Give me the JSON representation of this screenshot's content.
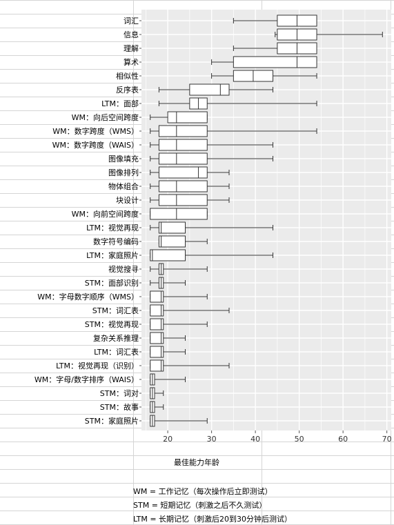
{
  "chart_data": {
    "type": "boxplot",
    "orientation": "horizontal",
    "title": "",
    "xlabel": "最佳能力年龄",
    "ylabel": "",
    "xlim": [
      14,
      71
    ],
    "xticks": [
      20,
      30,
      40,
      50,
      60,
      70
    ],
    "grid": true,
    "categories": [
      "词汇",
      "信息",
      "理解",
      "算术",
      "相似性",
      "反序表",
      "LTM：面部",
      "WM：向后空间跨度",
      "WM：数字跨度（WMS）",
      "WM：数字跨度（WAIS）",
      "图像填充",
      "图像排列",
      "物体组合",
      "块设计",
      "WM：向前空间跨度",
      "LTM：视觉再现",
      "数字符号编码",
      "LTM：家庭照片",
      "视觉搜寻",
      "STM：面部识别",
      "WM：字母数字顺序（WMS）",
      "STM：词汇表",
      "STM：视觉再现",
      "复杂关系推理",
      "LTM：词汇表",
      "LTM：视觉再现（识别）",
      "WM：字母/数字排序（WAIS）",
      "STM：词对",
      "STM：故事",
      "STM：家庭照片"
    ],
    "boxes": [
      {
        "min": 35,
        "q1": 45,
        "median": 49.5,
        "q3": 54,
        "max": 54
      },
      {
        "min": 44.5,
        "q1": 45,
        "median": 49.5,
        "q3": 54,
        "max": 69
      },
      {
        "min": 35,
        "q1": 45,
        "median": 49.5,
        "q3": 54,
        "max": 54
      },
      {
        "min": 30,
        "q1": 35,
        "median": 49.5,
        "q3": 54,
        "max": 54
      },
      {
        "min": 30,
        "q1": 35,
        "median": 39.5,
        "q3": 44,
        "max": 54
      },
      {
        "min": 18,
        "q1": 25,
        "median": 32,
        "q3": 34,
        "max": 44
      },
      {
        "min": 18,
        "q1": 25,
        "median": 27,
        "q3": 29,
        "max": 54
      },
      {
        "min": 16,
        "q1": 20,
        "median": 22,
        "q3": 29,
        "max": 29
      },
      {
        "min": 16,
        "q1": 18,
        "median": 22,
        "q3": 29,
        "max": 54
      },
      {
        "min": 16,
        "q1": 18,
        "median": 22,
        "q3": 29,
        "max": 44
      },
      {
        "min": 16,
        "q1": 18,
        "median": 22,
        "q3": 29,
        "max": 44
      },
      {
        "min": 16,
        "q1": 18,
        "median": 27,
        "q3": 29,
        "max": 34
      },
      {
        "min": 16,
        "q1": 18,
        "median": 22,
        "q3": 29,
        "max": 34
      },
      {
        "min": 16,
        "q1": 18,
        "median": 22,
        "q3": 29,
        "max": 34
      },
      {
        "min": 16,
        "q1": 16,
        "median": 22,
        "q3": 29,
        "max": 29
      },
      {
        "min": 16,
        "q1": 18,
        "median": 18.5,
        "q3": 24,
        "max": 44
      },
      {
        "min": 18,
        "q1": 18,
        "median": 18.5,
        "q3": 24,
        "max": 29
      },
      {
        "min": 16,
        "q1": 16,
        "median": 16.5,
        "q3": 24,
        "max": 44
      },
      {
        "min": 16,
        "q1": 18,
        "median": 18.5,
        "q3": 19,
        "max": 29
      },
      {
        "min": 16,
        "q1": 18,
        "median": 18.5,
        "q3": 19,
        "max": 24
      },
      {
        "min": 16,
        "q1": 16,
        "median": 18.5,
        "q3": 19,
        "max": 29
      },
      {
        "min": 16,
        "q1": 16,
        "median": 18.5,
        "q3": 19,
        "max": 34
      },
      {
        "min": 16,
        "q1": 16,
        "median": 18.5,
        "q3": 19,
        "max": 29
      },
      {
        "min": 16,
        "q1": 16,
        "median": 18.5,
        "q3": 19,
        "max": 24
      },
      {
        "min": 16,
        "q1": 16,
        "median": 18.5,
        "q3": 19,
        "max": 24
      },
      {
        "min": 16,
        "q1": 16,
        "median": 18.5,
        "q3": 19,
        "max": 34
      },
      {
        "min": 16,
        "q1": 16,
        "median": 16.5,
        "q3": 17,
        "max": 24
      },
      {
        "min": 16,
        "q1": 16,
        "median": 16.5,
        "q3": 17,
        "max": 19
      },
      {
        "min": 16,
        "q1": 16,
        "median": 16.5,
        "q3": 17,
        "max": 19
      },
      {
        "min": 16,
        "q1": 16,
        "median": 16.5,
        "q3": 17,
        "max": 29
      }
    ],
    "annotations": [
      "WM = 工作记忆（每次操作后立即测试）",
      "STM = 短期记忆（刺激之后不久测试）",
      "LTM = 长期记忆（刺激后20到30分钟后测试）"
    ]
  },
  "colors": {
    "panel_bg": "#ebebeb",
    "grid": "#ffffff",
    "box_fill": "#ffffff",
    "box_stroke": "#333333",
    "cell_lines": "#d4d4d4"
  }
}
